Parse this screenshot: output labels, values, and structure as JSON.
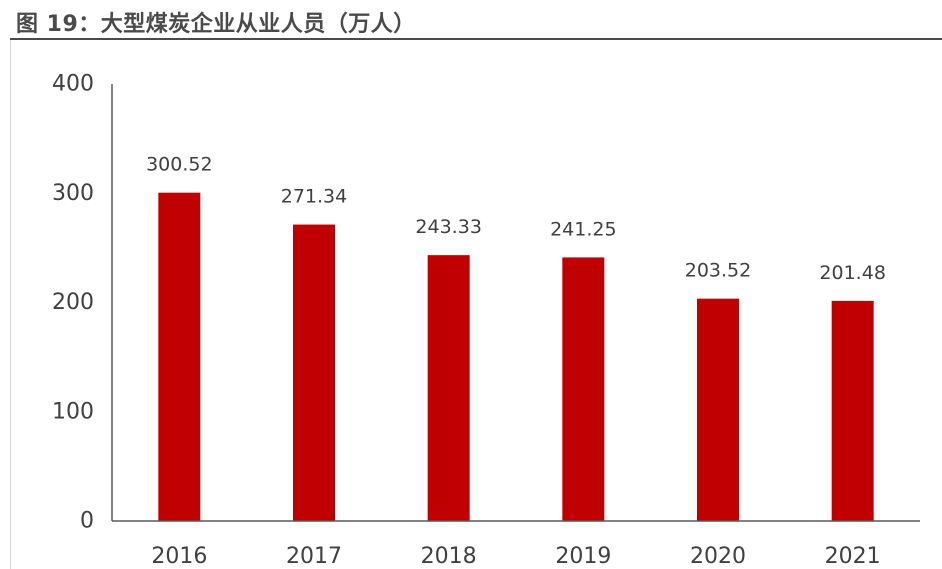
{
  "title": "图 19：大型煤炭企业从业人员（万人）",
  "colors": {
    "bar": "#c00000",
    "axis": "#595959",
    "text": "#404040",
    "title": "#4a4a4a"
  },
  "chart_data": {
    "type": "bar",
    "title": "图 19：大型煤炭企业从业人员（万人）",
    "categories": [
      "2016",
      "2017",
      "2018",
      "2019",
      "2020",
      "2021"
    ],
    "series": [
      {
        "values": [
          300.52,
          271.34,
          243.33,
          241.25,
          203.52,
          201.48
        ],
        "labels": [
          "300.52",
          "271.34",
          "243.33",
          "241.25",
          "203.52",
          "201.48"
        ]
      }
    ],
    "ylim": [
      0,
      400
    ],
    "yticks": [
      0,
      100,
      200,
      300,
      400
    ],
    "ytick_labels": [
      "0",
      "100",
      "200",
      "300",
      "400"
    ],
    "xlabel": "",
    "ylabel": "",
    "grid": false,
    "legend": "none",
    "data_labels": true
  }
}
